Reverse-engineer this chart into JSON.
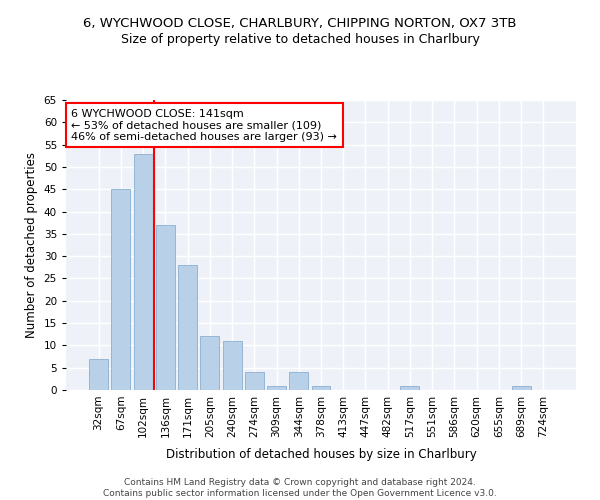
{
  "title": "6, WYCHWOOD CLOSE, CHARLBURY, CHIPPING NORTON, OX7 3TB",
  "subtitle": "Size of property relative to detached houses in Charlbury",
  "xlabel": "Distribution of detached houses by size in Charlbury",
  "ylabel": "Number of detached properties",
  "footer_line1": "Contains HM Land Registry data © Crown copyright and database right 2024.",
  "footer_line2": "Contains public sector information licensed under the Open Government Licence v3.0.",
  "categories": [
    "32sqm",
    "67sqm",
    "102sqm",
    "136sqm",
    "171sqm",
    "205sqm",
    "240sqm",
    "274sqm",
    "309sqm",
    "344sqm",
    "378sqm",
    "413sqm",
    "447sqm",
    "482sqm",
    "517sqm",
    "551sqm",
    "586sqm",
    "620sqm",
    "655sqm",
    "689sqm",
    "724sqm"
  ],
  "values": [
    7,
    45,
    53,
    37,
    28,
    12,
    11,
    4,
    1,
    4,
    1,
    0,
    0,
    0,
    1,
    0,
    0,
    0,
    0,
    1,
    0
  ],
  "bar_color": "#b8d0e8",
  "bar_edge_color": "#8ab0d0",
  "vline_color": "red",
  "vline_x_index": 2.5,
  "annotation_text": "6 WYCHWOOD CLOSE: 141sqm\n← 53% of detached houses are smaller (109)\n46% of semi-detached houses are larger (93) →",
  "annotation_box_color": "white",
  "annotation_box_edge_color": "red",
  "ylim": [
    0,
    65
  ],
  "yticks": [
    0,
    5,
    10,
    15,
    20,
    25,
    30,
    35,
    40,
    45,
    50,
    55,
    60,
    65
  ],
  "bg_color": "#eef2f8",
  "grid_color": "white",
  "title_fontsize": 9.5,
  "subtitle_fontsize": 9,
  "axis_label_fontsize": 8.5,
  "tick_fontsize": 7.5,
  "annotation_fontsize": 8
}
